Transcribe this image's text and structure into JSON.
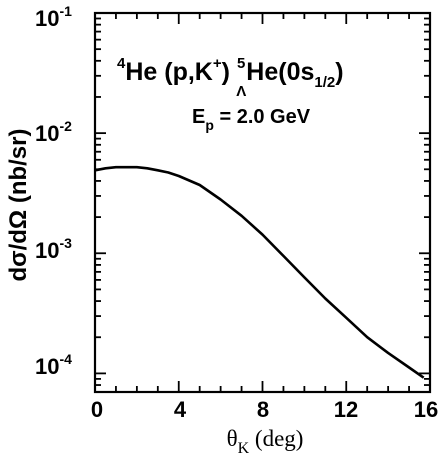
{
  "chart_data": {
    "type": "line",
    "title": {
      "reaction_pre": "He (p,K",
      "reaction_target_mass": "4",
      "reaction_kaon_charge": "+",
      "reaction_close": ")",
      "hyper_mass": "5",
      "hyper_sub": "Λ",
      "hyper_name": "He(0s",
      "hyper_state_sub": "1/2",
      "hyper_close": ")"
    },
    "energy_label": {
      "symbol": "E",
      "sub": "p",
      "value": " = 2.0 GeV"
    },
    "xlabel": {
      "symbol": "θ",
      "sub": "K",
      "unit": " (deg)"
    },
    "ylabel": "dσ/dΩ (nb/sr)",
    "xlim": [
      0,
      16
    ],
    "ylim": [
      7e-05,
      0.1
    ],
    "y_scale": "log",
    "x_ticks": [
      "0",
      "4",
      "8",
      "12",
      "16"
    ],
    "y_ticks": [
      {
        "base": "10",
        "exp": "-1"
      },
      {
        "base": "10",
        "exp": "-2"
      },
      {
        "base": "10",
        "exp": "-3"
      },
      {
        "base": "10",
        "exp": "-4"
      }
    ],
    "series": [
      {
        "x": [
          0,
          0.5,
          1,
          1.5,
          2,
          2.5,
          3,
          3.5,
          4,
          5,
          6,
          7,
          8,
          9,
          10,
          11,
          12,
          13,
          14,
          15,
          15.7
        ],
        "y": [
          0.0049,
          0.0051,
          0.0052,
          0.0052,
          0.0052,
          0.0051,
          0.0049,
          0.0047,
          0.0044,
          0.0037,
          0.0028,
          0.00205,
          0.00143,
          0.00095,
          0.00063,
          0.00042,
          0.00029,
          0.0002,
          0.000148,
          0.000112,
          9.2e-05
        ]
      }
    ]
  }
}
